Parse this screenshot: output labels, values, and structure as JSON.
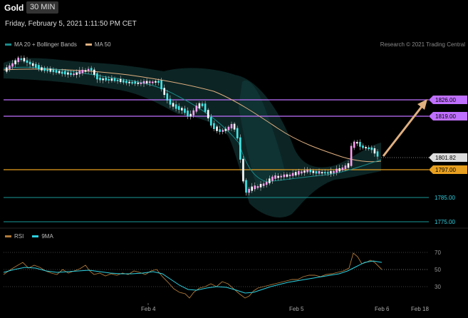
{
  "header": {
    "title": "Gold",
    "timeframe": "30 MIN"
  },
  "datetime": "Friday, February 5, 2021 1:11:50 PM CET",
  "credit": "Research © 2021 Trading Central",
  "legend_main": [
    {
      "label": "MA 20 + Bollinger Bands",
      "color": "#1a8a8a"
    },
    {
      "label": "MA 50",
      "color": "#e0b080"
    }
  ],
  "legend_rsi": [
    {
      "label": "RSI",
      "color": "#b07a3a"
    },
    {
      "label": "9MA",
      "color": "#2cd0e0"
    }
  ],
  "levels": [
    {
      "value": "1826.00",
      "kind": "resistance",
      "color": "#c070ff"
    },
    {
      "value": "1819.00",
      "kind": "resistance",
      "color": "#c070ff"
    },
    {
      "value": "1801.82",
      "kind": "last",
      "color": "#dddddd"
    },
    {
      "value": "1797.00",
      "kind": "pivot",
      "color": "#e8a020"
    },
    {
      "value": "1785.00",
      "kind": "support",
      "color": "#1a9a9a"
    },
    {
      "value": "1775.00",
      "kind": "support",
      "color": "#1a9a9a"
    }
  ],
  "rsi_ticks": [
    "70",
    "50",
    "30"
  ],
  "x_labels": [
    "Feb 4",
    "Feb 5",
    "Feb 6",
    "Feb 18"
  ]
}
